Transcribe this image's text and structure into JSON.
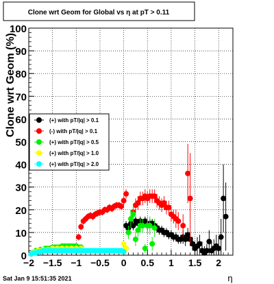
{
  "chart_data": {
    "type": "scatter",
    "title": "Clone wrt Geom for Global vs   η at pT > 0.11",
    "xlabel": "η",
    "ylabel": "Clone wrt Geom (%)",
    "xlim": [
      -2,
      2.3
    ],
    "ylim": [
      0,
      100
    ],
    "xticks": [
      -2,
      -1.5,
      -1,
      -0.5,
      0,
      0.5,
      1,
      1.5,
      2
    ],
    "xtick_labels": [
      "−2",
      "−1.5",
      "−1",
      "−0.5",
      "0",
      "0.5",
      "1",
      "1.5",
      "2"
    ],
    "yticks": [
      0,
      10,
      20,
      30,
      40,
      50,
      60,
      70,
      80,
      90,
      100
    ],
    "ytick_labels": [
      "0",
      "10",
      "20",
      "30",
      "40",
      "50",
      "60",
      "70",
      "80",
      "90",
      "100"
    ],
    "grid": true,
    "legend_position": "center-left",
    "timestamp": "Sat Jan  9 15:51:35 2021",
    "series": [
      {
        "name": "(+) with pT/|q| > 0.1",
        "color": "#000000",
        "x": [
          0.05,
          0.1,
          0.15,
          0.2,
          0.25,
          0.3,
          0.35,
          0.4,
          0.45,
          0.5,
          0.55,
          0.6,
          0.65,
          0.7,
          0.75,
          0.8,
          0.85,
          0.9,
          0.95,
          1.0,
          1.05,
          1.1,
          1.15,
          1.2,
          1.25,
          1.3,
          1.35,
          1.4,
          1.45,
          1.5,
          1.55,
          1.6,
          1.65,
          1.7,
          1.75,
          1.8,
          1.85,
          1.9,
          1.95,
          2.0,
          2.05,
          2.1,
          2.15
        ],
        "y": [
          13,
          12,
          14,
          13,
          15,
          14,
          15,
          14,
          15,
          13,
          14,
          14,
          13,
          12,
          11,
          11,
          10,
          10,
          9,
          9,
          8,
          8,
          7,
          7,
          8,
          7,
          9,
          7,
          5,
          3,
          4,
          5,
          2,
          1,
          2,
          6,
          2,
          3,
          4,
          3,
          8,
          25,
          17
        ],
        "err": [
          2,
          2,
          2,
          2,
          2,
          2,
          2,
          2,
          2,
          2,
          2,
          2,
          2,
          2,
          2,
          2,
          2,
          2,
          2,
          2,
          2,
          2,
          2,
          2,
          3,
          3,
          3,
          3,
          3,
          3,
          4,
          4,
          4,
          3,
          3,
          5,
          4,
          4,
          5,
          5,
          8,
          15,
          15
        ]
      },
      {
        "name": "(-) with pT/|q| > 0.1",
        "color": "#ff0000",
        "x": [
          -1.0,
          -0.95,
          -0.9,
          -0.85,
          -0.8,
          -0.75,
          -0.7,
          -0.65,
          -0.6,
          -0.55,
          -0.5,
          -0.45,
          -0.4,
          -0.35,
          -0.3,
          -0.25,
          -0.2,
          -0.15,
          -0.1,
          -0.05,
          0.0,
          0.05,
          0.2,
          0.25,
          0.3,
          0.35,
          0.4,
          0.45,
          0.5,
          0.55,
          0.6,
          0.65,
          0.7,
          0.75,
          0.8,
          0.85,
          0.9,
          0.95,
          1.0,
          1.05,
          1.1,
          1.15,
          1.25,
          1.35,
          1.4
        ],
        "y": [
          4,
          8,
          12.5,
          15,
          16,
          17,
          17.5,
          17,
          18,
          18.5,
          19,
          19,
          20,
          20,
          21,
          20.5,
          21.5,
          22,
          22,
          21.5,
          24,
          27,
          19,
          22,
          23,
          25,
          25,
          26,
          25,
          26,
          26,
          26,
          24,
          23,
          22,
          23,
          21,
          21,
          18,
          17,
          16,
          15,
          13,
          36,
          25
        ],
        "err": [
          1,
          1.5,
          1.5,
          1.5,
          1.5,
          1.5,
          1.5,
          1.5,
          1.5,
          1.5,
          1.5,
          1.5,
          1.5,
          1.5,
          1.5,
          1.5,
          1.5,
          1.5,
          1.5,
          1.5,
          2,
          2,
          3,
          3,
          3,
          3,
          3,
          3,
          3,
          3,
          3,
          3,
          3,
          3,
          3,
          3,
          3,
          3,
          3,
          3,
          4,
          4,
          5,
          13,
          20
        ]
      },
      {
        "name": "(+) with pT/|q| > 0.5",
        "color": "#00ee00",
        "x": [
          -1.9,
          -1.85,
          -1.8,
          -1.75,
          -1.7,
          -1.65,
          -1.6,
          -1.55,
          -1.5,
          -1.45,
          -1.4,
          -1.35,
          -1.3,
          -1.25,
          -1.2,
          -1.15,
          -1.1,
          -1.05,
          -1.0,
          -0.95,
          -0.9,
          0.05,
          0.1,
          0.15,
          0.2,
          0.25,
          0.3,
          0.35,
          0.4,
          0.45,
          0.5,
          0.55,
          0.6,
          0.65
        ],
        "y": [
          1.5,
          2,
          2,
          2.5,
          2.5,
          3,
          3,
          3,
          3.5,
          3.5,
          3.5,
          3.5,
          4,
          4,
          4,
          4,
          4,
          4,
          4,
          3.5,
          3.5,
          3,
          10,
          16,
          18,
          7,
          11,
          13,
          13,
          3,
          13,
          13,
          5,
          12
        ],
        "err": [
          0.5,
          0.5,
          0.5,
          0.5,
          0.5,
          0.5,
          0.5,
          0.5,
          0.5,
          0.5,
          0.5,
          0.5,
          0.5,
          0.5,
          0.5,
          0.5,
          0.5,
          0.5,
          0.5,
          0.5,
          0.5,
          1,
          3,
          4,
          4,
          3,
          3,
          3,
          3,
          2,
          4,
          4,
          3,
          4
        ]
      },
      {
        "name": "(+) with pT/|q| > 1.0",
        "color": "#ffff00",
        "x": [
          -1.9,
          -1.8,
          -1.7,
          -1.6,
          -1.5,
          -1.4,
          -1.3,
          -1.2,
          -1.1,
          -1.0,
          -0.9,
          0.0,
          0.05
        ],
        "y": [
          1.5,
          2,
          2.5,
          2.5,
          3,
          3,
          3,
          3,
          3,
          3,
          3,
          5,
          3
        ],
        "err": [
          0.5,
          0.5,
          0.5,
          0.5,
          0.5,
          0.5,
          0.5,
          0.5,
          0.5,
          0.5,
          0.5,
          1,
          1
        ]
      },
      {
        "name": "(+) with pT/|q| > 2.0",
        "color": "#00ffff",
        "x": [
          -1.95,
          -1.9,
          -1.85,
          -1.8,
          -1.75,
          -1.7,
          -1.65,
          -1.6,
          -1.55,
          -1.5,
          -1.45,
          -1.4,
          -1.35,
          -1.3,
          -1.25,
          -1.2,
          -1.15,
          -1.1,
          -1.05,
          -1.0,
          -0.95,
          -0.9,
          -0.85,
          -0.8,
          -0.75,
          -0.7,
          -0.65,
          -0.6,
          -0.55,
          -0.5,
          -0.45,
          -0.4,
          -0.35,
          -0.3,
          -0.25,
          -0.2,
          -0.15,
          -0.1,
          -0.05,
          0.0
        ],
        "y": [
          0.5,
          1,
          1,
          1.5,
          1.5,
          2,
          2,
          2,
          2,
          2,
          2,
          2,
          2,
          2,
          2,
          2,
          2,
          2,
          2,
          2,
          2,
          2,
          2,
          2,
          2,
          2,
          2,
          2,
          2,
          2,
          2,
          2,
          2,
          2,
          2,
          2,
          2,
          2,
          2,
          1.5
        ],
        "err": [
          0.3,
          0.3,
          0.3,
          0.3,
          0.3,
          0.3,
          0.3,
          0.3,
          0.3,
          0.3,
          0.3,
          0.3,
          0.3,
          0.3,
          0.3,
          0.3,
          0.3,
          0.3,
          0.3,
          0.3,
          0.3,
          0.3,
          0.3,
          0.3,
          0.3,
          0.3,
          0.3,
          0.3,
          0.3,
          0.3,
          0.3,
          0.3,
          0.3,
          0.3,
          0.3,
          0.3,
          0.3,
          0.3,
          0.3,
          0.3
        ]
      }
    ]
  }
}
